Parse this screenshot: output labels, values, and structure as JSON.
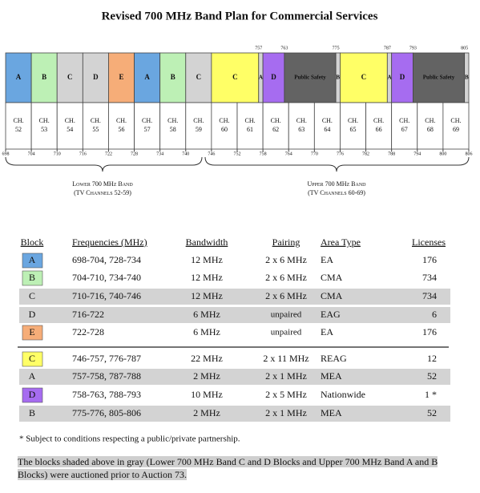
{
  "diagram": {
    "title": "Revised 700 MHz Band Plan for Commercial Services",
    "blocks": [
      {
        "label": "A",
        "start": 698,
        "end": 704,
        "color": "#6aa6e0"
      },
      {
        "label": "B",
        "start": 704,
        "end": 710,
        "color": "#bdf0b5"
      },
      {
        "label": "C",
        "start": 710,
        "end": 716,
        "color": "#d3d3d3"
      },
      {
        "label": "D",
        "start": 716,
        "end": 722,
        "color": "#d3d3d3"
      },
      {
        "label": "E",
        "start": 722,
        "end": 728,
        "color": "#f6ad78"
      },
      {
        "label": "A",
        "start": 728,
        "end": 734,
        "color": "#6aa6e0"
      },
      {
        "label": "B",
        "start": 734,
        "end": 740,
        "color": "#bdf0b5"
      },
      {
        "label": "C",
        "start": 740,
        "end": 746,
        "color": "#d3d3d3"
      },
      {
        "label": "C",
        "start": 746,
        "end": 757,
        "color": "#ffff66"
      },
      {
        "label": "A",
        "start": 757,
        "end": 758,
        "color": "#d3d3d3"
      },
      {
        "label": "D",
        "start": 758,
        "end": 763,
        "color": "#a66cf0"
      },
      {
        "label": "Public Safety",
        "start": 763,
        "end": 775,
        "color": "#636363"
      },
      {
        "label": "B",
        "start": 775,
        "end": 776,
        "color": "#d3d3d3"
      },
      {
        "label": "C",
        "start": 776,
        "end": 787,
        "color": "#ffff66"
      },
      {
        "label": "A",
        "start": 787,
        "end": 788,
        "color": "#d3d3d3"
      },
      {
        "label": "D",
        "start": 788,
        "end": 793,
        "color": "#a66cf0"
      },
      {
        "label": "Public Safety",
        "start": 793,
        "end": 805,
        "color": "#636363"
      },
      {
        "label": "B",
        "start": 805,
        "end": 806,
        "color": "#d3d3d3"
      }
    ],
    "top_labels": [
      757,
      763,
      775,
      787,
      793,
      805
    ],
    "channel_prefix": "CH.",
    "channels": [
      "52",
      "53",
      "54",
      "55",
      "56",
      "57",
      "58",
      "59",
      "60",
      "61",
      "62",
      "63",
      "64",
      "65",
      "66",
      "67",
      "68",
      "69"
    ],
    "freq_ticks": [
      698,
      704,
      710,
      716,
      722,
      728,
      734,
      740,
      746,
      752,
      758,
      764,
      770,
      776,
      782,
      788,
      794,
      800,
      806
    ],
    "bands": [
      {
        "name": "Lower 700 MHz Band",
        "channels": "(TV Channels 52-59)"
      },
      {
        "name": "Upper 700 MHz Band",
        "channels": "(TV Channels 60-69)"
      }
    ]
  },
  "table": {
    "headers": [
      "Block",
      "Frequencies (MHz)",
      "Bandwidth",
      "Pairing",
      "Area Type",
      "Licenses"
    ],
    "rows": [
      {
        "cells": [
          "A",
          "698-704, 728-734",
          "12 MHz",
          "2 x 6 MHz",
          "EA",
          "176"
        ],
        "swatch": "#6aa6e0",
        "shaded": false
      },
      {
        "cells": [
          "B",
          "704-710, 734-740",
          "12 MHz",
          "2 x 6 MHz",
          "CMA",
          "734"
        ],
        "swatch": "#bdf0b5",
        "shaded": false
      },
      {
        "cells": [
          "C",
          "710-716, 740-746",
          "12 MHz",
          "2 x 6 MHz",
          "CMA",
          "734"
        ],
        "swatch": null,
        "shaded": true
      },
      {
        "cells": [
          "D",
          "716-722",
          "6 MHz",
          "unpaired",
          "EAG",
          "6"
        ],
        "swatch": null,
        "shaded": true
      },
      {
        "cells": [
          "E",
          "722-728",
          "6 MHz",
          "unpaired",
          "EA",
          "176"
        ],
        "swatch": "#f6ad78",
        "shaded": false
      },
      {
        "cells": [
          "C",
          "746-757, 776-787",
          "22 MHz",
          "2 x 11 MHz",
          "REAG",
          "12"
        ],
        "swatch": "#ffff66",
        "shaded": false
      },
      {
        "cells": [
          "A",
          "757-758, 787-788",
          "2 MHz",
          "2 x 1 MHz",
          "MEA",
          "52"
        ],
        "swatch": null,
        "shaded": true
      },
      {
        "cells": [
          "D",
          "758-763, 788-793",
          "10 MHz",
          "2 x 5 MHz",
          "Nationwide",
          "1 *"
        ],
        "swatch": "#a66cf0",
        "shaded": false
      },
      {
        "cells": [
          "B",
          "775-776, 805-806",
          "2 MHz",
          "2 x 1 MHz",
          "MEA",
          "52"
        ],
        "swatch": null,
        "shaded": true
      }
    ]
  },
  "footnote": "* Subject to conditions respecting a public/private partnership.",
  "note": "The blocks shaded above in gray (Lower 700 MHz Band C and D Blocks and Upper 700 MHz Band A and B Blocks) were auctioned prior to Auction 73."
}
